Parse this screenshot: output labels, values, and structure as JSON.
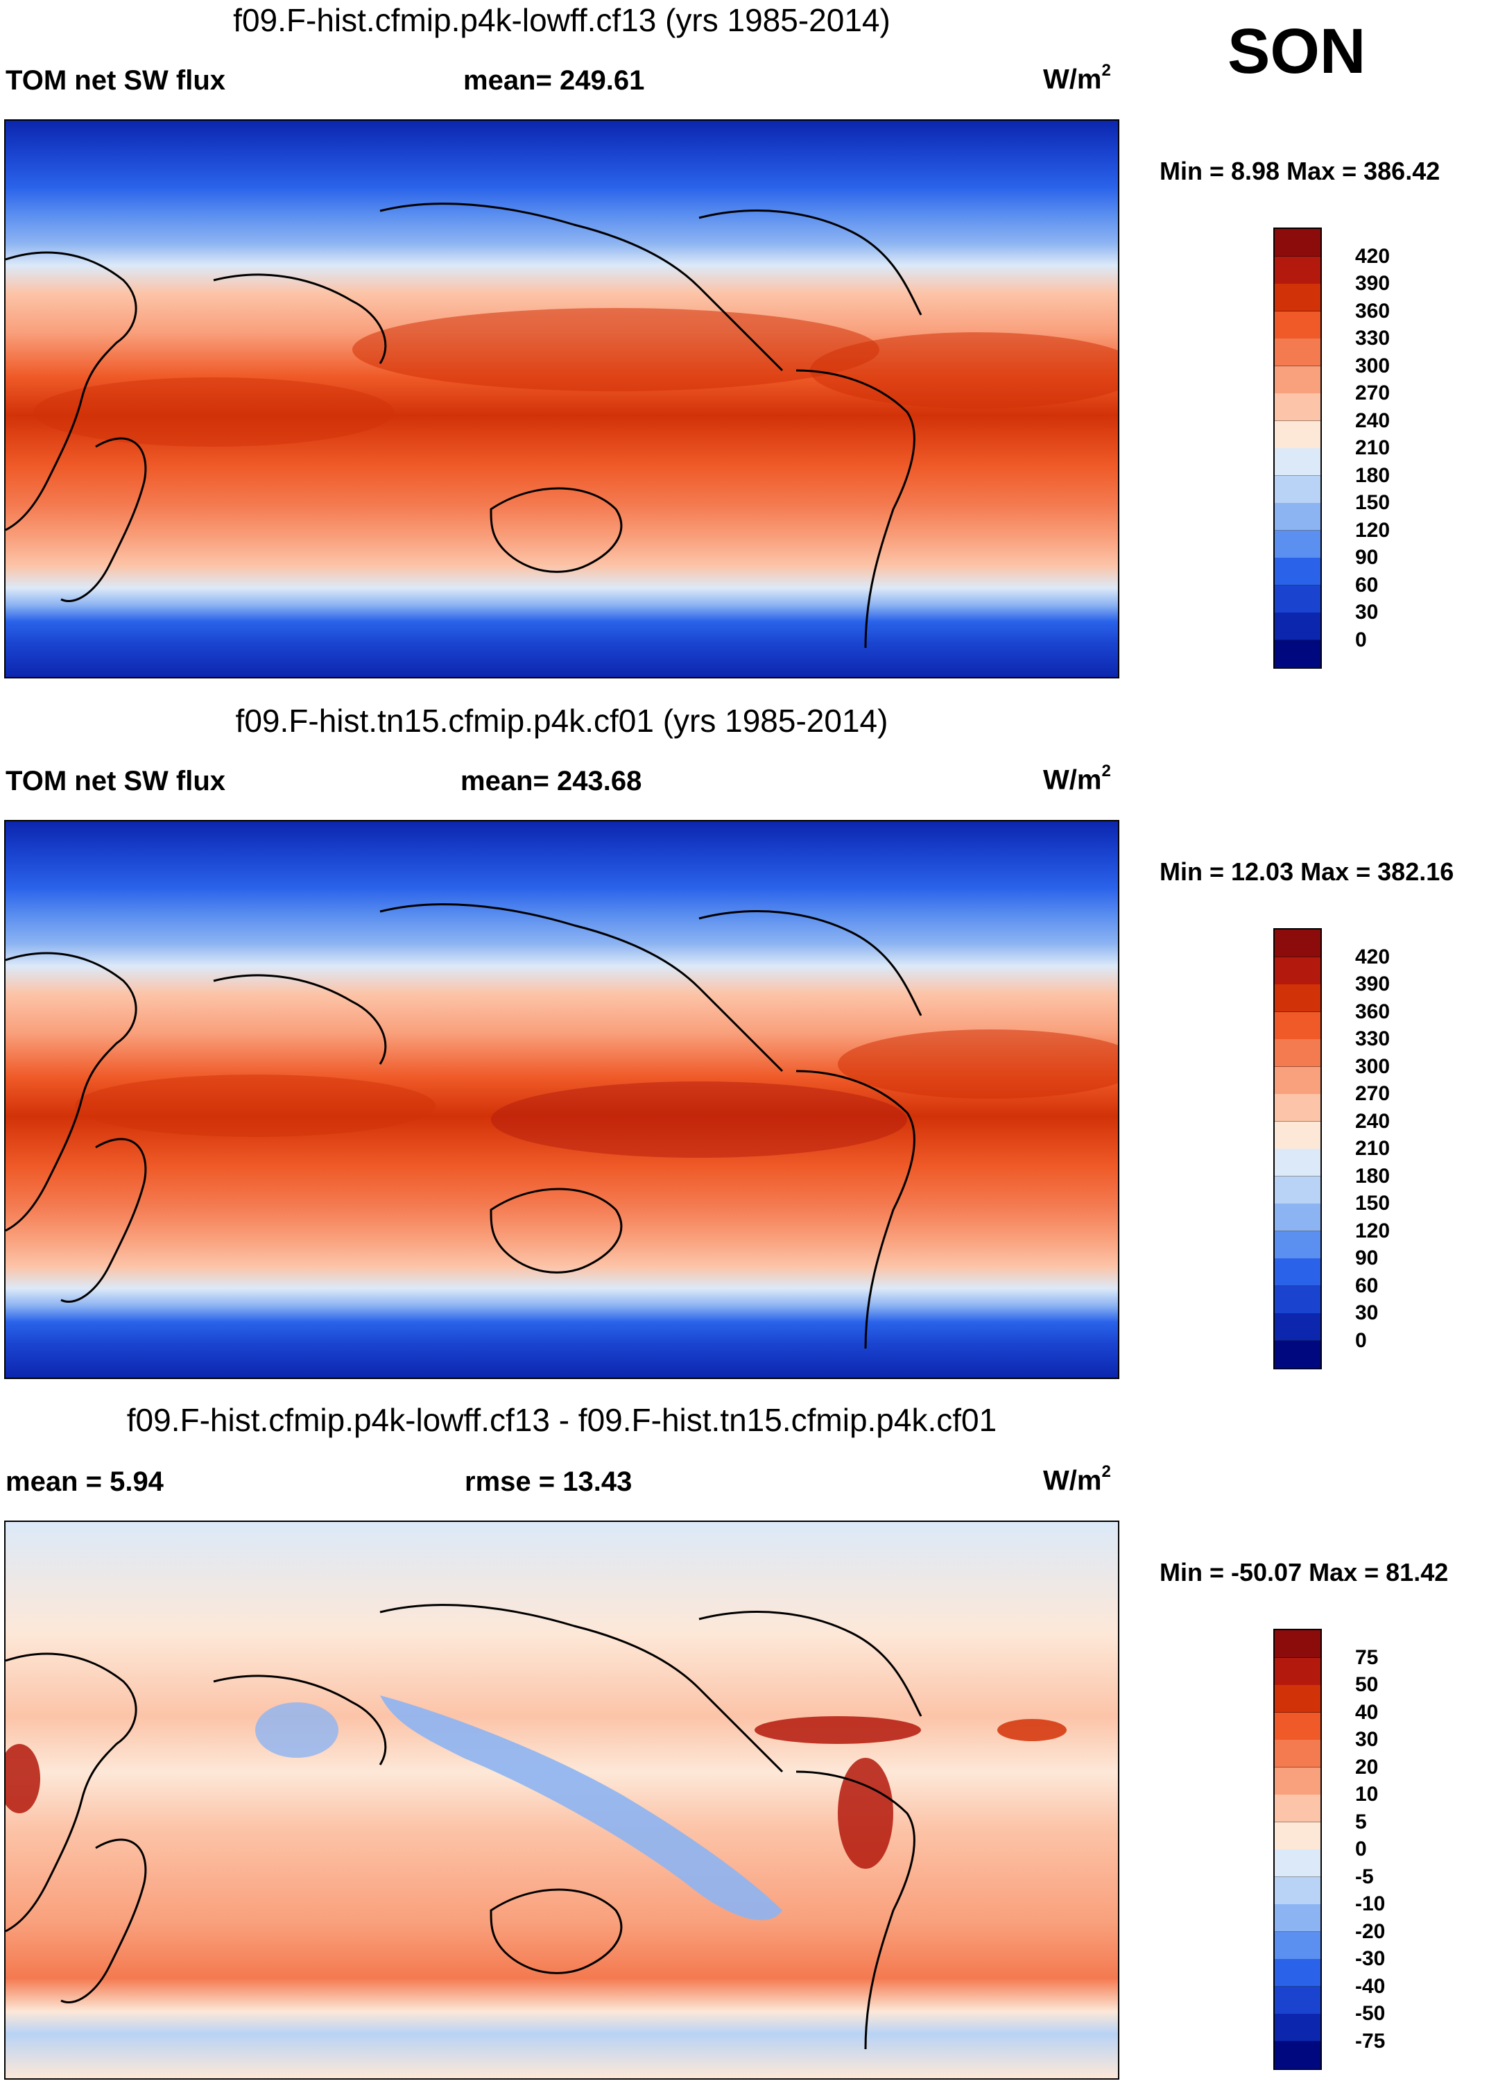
{
  "season": "SON",
  "panels": [
    {
      "title": "f09.F-hist.cfmip.p4k-lowff.cf13 (yrs 1985-2014)",
      "left_label": "TOM net SW flux",
      "center_label": "mean= 249.61",
      "units": "W/m",
      "units_sup": "2",
      "minmax": "Min =   8.98 Max = 386.42",
      "colorbar": {
        "levels": [
          "420",
          "390",
          "360",
          "330",
          "300",
          "270",
          "240",
          "210",
          "180",
          "150",
          "120",
          "90",
          "60",
          "30",
          "0"
        ],
        "colors": [
          "#8c0c0c",
          "#b3190c",
          "#d23208",
          "#ef5a28",
          "#f47a50",
          "#f9a07c",
          "#fcc4a8",
          "#fde8d8",
          "#dce9f8",
          "#b8d3f5",
          "#8db4f2",
          "#5b8ff0",
          "#2a63ea",
          "#1a44d0",
          "#0c26ae",
          "#000880"
        ]
      }
    },
    {
      "title": "f09.F-hist.tn15.cfmip.p4k.cf01 (yrs 1985-2014)",
      "left_label": "TOM net SW flux",
      "center_label": "mean= 243.68",
      "units": "W/m",
      "units_sup": "2",
      "minmax": "Min =  12.03 Max = 382.16",
      "colorbar": {
        "levels": [
          "420",
          "390",
          "360",
          "330",
          "300",
          "270",
          "240",
          "210",
          "180",
          "150",
          "120",
          "90",
          "60",
          "30",
          "0"
        ],
        "colors": [
          "#8c0c0c",
          "#b3190c",
          "#d23208",
          "#ef5a28",
          "#f47a50",
          "#f9a07c",
          "#fcc4a8",
          "#fde8d8",
          "#dce9f8",
          "#b8d3f5",
          "#8db4f2",
          "#5b8ff0",
          "#2a63ea",
          "#1a44d0",
          "#0c26ae",
          "#000880"
        ]
      }
    },
    {
      "title": "f09.F-hist.cfmip.p4k-lowff.cf13 - f09.F-hist.tn15.cfmip.p4k.cf01",
      "left_label": "mean =   5.94",
      "center_label": "rmse =  13.43",
      "units": "W/m",
      "units_sup": "2",
      "minmax": "Min = -50.07 Max =  81.42",
      "colorbar": {
        "levels": [
          "75",
          "50",
          "40",
          "30",
          "20",
          "10",
          "5",
          "0",
          "-5",
          "-10",
          "-20",
          "-30",
          "-40",
          "-50",
          "-75"
        ],
        "colors": [
          "#8c0c0c",
          "#b3190c",
          "#d23208",
          "#ef5a28",
          "#f47a50",
          "#f9a07c",
          "#fcc4a8",
          "#fde8d8",
          "#dce9f8",
          "#b8d3f5",
          "#8db4f2",
          "#5b8ff0",
          "#2a63ea",
          "#1a44d0",
          "#0c26ae",
          "#000880"
        ]
      }
    }
  ]
}
